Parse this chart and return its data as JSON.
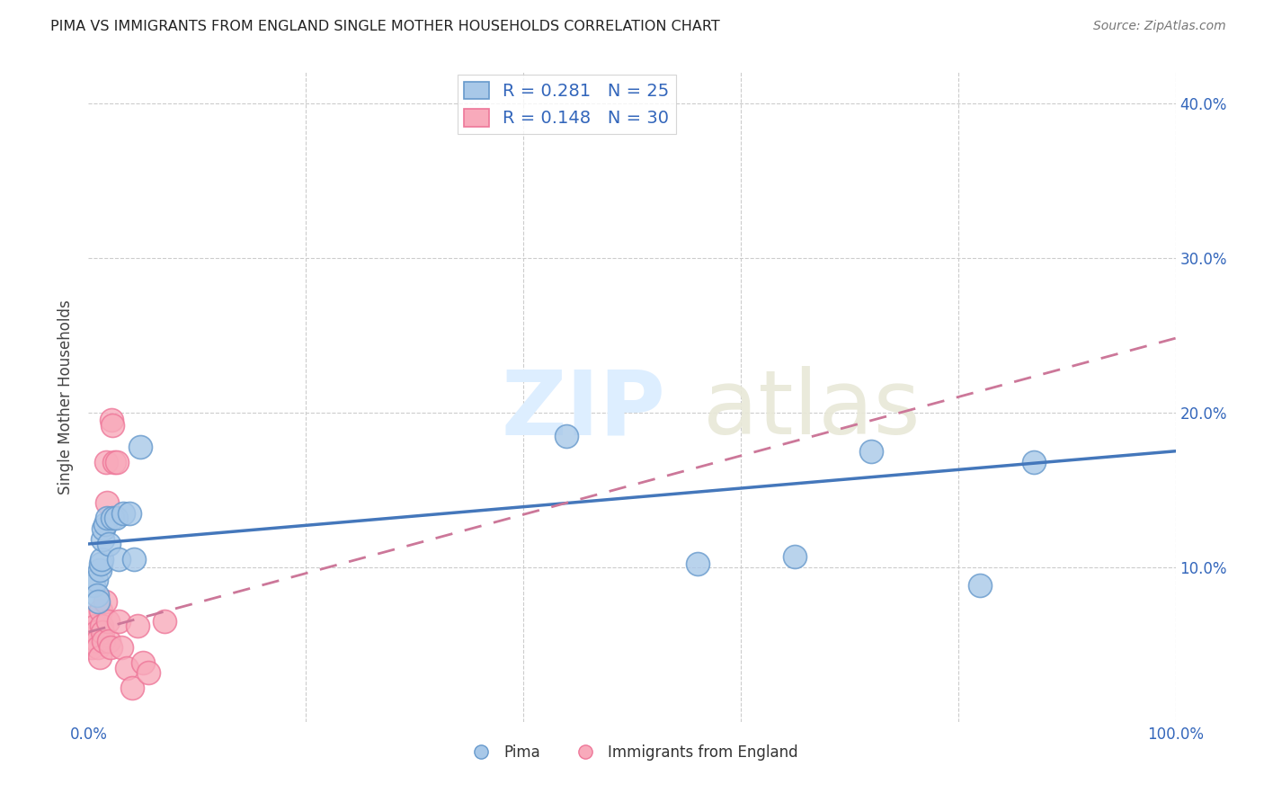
{
  "title": "PIMA VS IMMIGRANTS FROM ENGLAND SINGLE MOTHER HOUSEHOLDS CORRELATION CHART",
  "source": "Source: ZipAtlas.com",
  "xlabel_pima": "Pima",
  "xlabel_england": "Immigrants from England",
  "ylabel": "Single Mother Households",
  "xlim": [
    0,
    1.0
  ],
  "ylim": [
    0,
    0.42
  ],
  "x_ticks": [
    0.0,
    0.2,
    0.4,
    0.6,
    0.8,
    1.0
  ],
  "x_tick_labels": [
    "0.0%",
    "",
    "",
    "",
    "",
    "100.0%"
  ],
  "y_ticks": [
    0.0,
    0.1,
    0.2,
    0.3,
    0.4
  ],
  "y_tick_labels": [
    "",
    "10.0%",
    "20.0%",
    "30.0%",
    "40.0%"
  ],
  "pima_R": 0.281,
  "pima_N": 25,
  "england_R": 0.148,
  "england_N": 30,
  "blue_scatter": "#A8C8E8",
  "blue_edge": "#6699CC",
  "pink_scatter": "#F8AABB",
  "pink_edge": "#EE7799",
  "line_blue": "#4477BB",
  "line_pink": "#CC7799",
  "grid_color": "#CCCCCC",
  "pima_x": [
    0.005,
    0.007,
    0.008,
    0.009,
    0.01,
    0.011,
    0.012,
    0.013,
    0.014,
    0.015,
    0.017,
    0.019,
    0.022,
    0.025,
    0.028,
    0.032,
    0.038,
    0.042,
    0.048,
    0.44,
    0.56,
    0.65,
    0.72,
    0.82,
    0.87
  ],
  "pima_y": [
    0.088,
    0.092,
    0.082,
    0.078,
    0.098,
    0.102,
    0.105,
    0.118,
    0.125,
    0.128,
    0.132,
    0.115,
    0.132,
    0.132,
    0.105,
    0.135,
    0.135,
    0.105,
    0.178,
    0.185,
    0.102,
    0.107,
    0.175,
    0.088,
    0.168
  ],
  "england_x": [
    0.003,
    0.004,
    0.005,
    0.006,
    0.007,
    0.008,
    0.009,
    0.01,
    0.011,
    0.012,
    0.013,
    0.014,
    0.015,
    0.016,
    0.017,
    0.018,
    0.019,
    0.02,
    0.021,
    0.022,
    0.024,
    0.026,
    0.028,
    0.03,
    0.035,
    0.04,
    0.045,
    0.05,
    0.055,
    0.07
  ],
  "england_y": [
    0.048,
    0.058,
    0.068,
    0.062,
    0.058,
    0.052,
    0.048,
    0.042,
    0.072,
    0.062,
    0.058,
    0.052,
    0.078,
    0.168,
    0.142,
    0.065,
    0.052,
    0.048,
    0.195,
    0.192,
    0.168,
    0.168,
    0.065,
    0.048,
    0.035,
    0.022,
    0.062,
    0.038,
    0.032,
    0.065
  ],
  "pima_trend_x": [
    0.0,
    1.0
  ],
  "pima_trend_y": [
    0.115,
    0.175
  ],
  "england_trend_x": [
    0.0,
    1.0
  ],
  "england_trend_y": [
    0.058,
    0.248
  ]
}
